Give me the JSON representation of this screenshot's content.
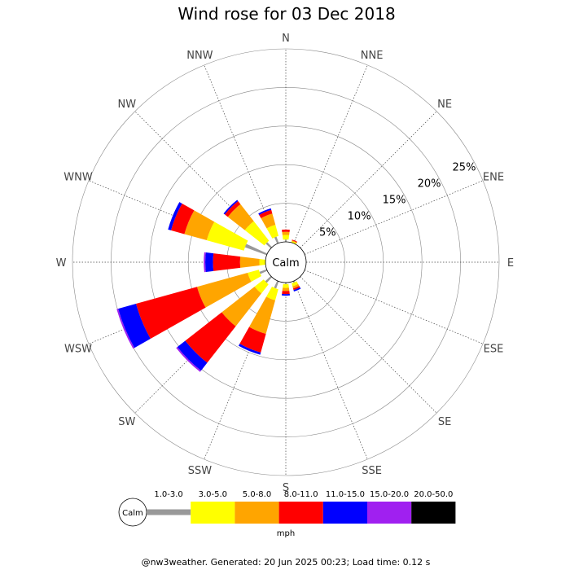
{
  "chart_data": {
    "type": "wind-rose",
    "title": "Wind rose for 03 Dec 2018",
    "directions": [
      "N",
      "NNE",
      "NE",
      "ENE",
      "E",
      "ESE",
      "SE",
      "SSE",
      "S",
      "SSW",
      "SW",
      "WSW",
      "W",
      "WNW",
      "NW",
      "NNW"
    ],
    "ring_labels": [
      "5%",
      "10%",
      "15%",
      "20%",
      "25%"
    ],
    "ring_values": [
      5,
      10,
      15,
      20,
      25
    ],
    "max_percent": 25,
    "calm_label": "Calm",
    "unit": "mph",
    "bins": [
      {
        "name": "1.0-3.0",
        "color": "#999999"
      },
      {
        "name": "3.0-5.0",
        "color": "#ffff00"
      },
      {
        "name": "5.0-8.0",
        "color": "#ffa500"
      },
      {
        "name": "8.0-11.0",
        "color": "#ff0000"
      },
      {
        "name": "11.0-15.0",
        "color": "#0000ff"
      },
      {
        "name": "15.0-20.0",
        "color": "#a020f0"
      },
      {
        "name": "20.0-50.0",
        "color": "#000000"
      }
    ],
    "series": [
      {
        "direction": "N",
        "values": [
          0.3,
          0.6,
          0.4,
          0.3,
          0.0,
          0.0,
          0.0
        ]
      },
      {
        "direction": "NNE",
        "values": [
          0.0,
          0.2,
          0.1,
          0.1,
          0.0,
          0.0,
          0.0
        ]
      },
      {
        "direction": "NE",
        "values": [
          0.0,
          0.0,
          0.0,
          0.0,
          0.0,
          0.0,
          0.0
        ]
      },
      {
        "direction": "ENE",
        "values": [
          0.0,
          0.0,
          0.0,
          0.0,
          0.0,
          0.0,
          0.0
        ]
      },
      {
        "direction": "E",
        "values": [
          0.0,
          0.0,
          0.0,
          0.0,
          0.0,
          0.0,
          0.0
        ]
      },
      {
        "direction": "ESE",
        "values": [
          0.0,
          0.0,
          0.0,
          0.0,
          0.0,
          0.0,
          0.0
        ]
      },
      {
        "direction": "SE",
        "values": [
          0.0,
          0.0,
          0.0,
          0.0,
          0.0,
          0.0,
          0.0
        ]
      },
      {
        "direction": "SSE",
        "values": [
          0.2,
          0.4,
          0.3,
          0.2,
          0.2,
          0.0,
          0.0
        ]
      },
      {
        "direction": "S",
        "values": [
          0.2,
          0.5,
          0.4,
          0.4,
          0.2,
          0.0,
          0.0
        ]
      },
      {
        "direction": "SSW",
        "values": [
          1.0,
          1.5,
          4.5,
          2.5,
          0.3,
          0.0,
          0.0
        ]
      },
      {
        "direction": "SW",
        "values": [
          1.0,
          1.5,
          5.4,
          6.0,
          1.3,
          0.2,
          0.0
        ]
      },
      {
        "direction": "WSW",
        "values": [
          1.0,
          1.5,
          6.8,
          8.2,
          2.4,
          0.2,
          0.0
        ]
      },
      {
        "direction": "W",
        "values": [
          0.0,
          0.8,
          2.5,
          3.5,
          1.0,
          0.2,
          0.0
        ]
      },
      {
        "direction": "WNW",
        "values": [
          3.0,
          5.0,
          3.0,
          1.8,
          0.4,
          0.0,
          0.0
        ]
      },
      {
        "direction": "NW",
        "values": [
          0.9,
          3.2,
          2.8,
          0.5,
          0.2,
          0.0,
          0.0
        ]
      },
      {
        "direction": "NNW",
        "values": [
          0.9,
          1.5,
          1.5,
          0.5,
          0.2,
          0.0,
          0.0
        ]
      }
    ]
  },
  "footer": "@nw3weather. Generated: 20 Jun 2025 00:23; Load time: 0.12 s"
}
